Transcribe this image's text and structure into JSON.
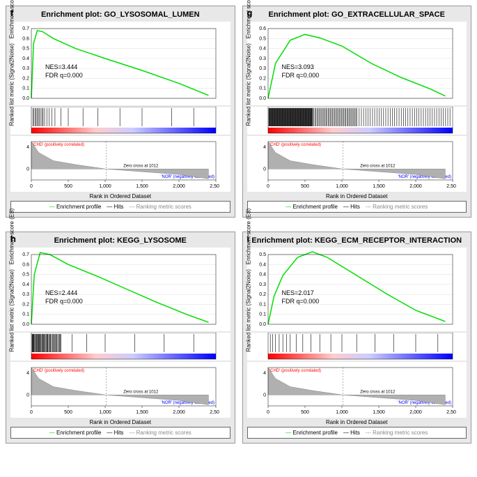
{
  "panels": [
    {
      "letter": "f",
      "title": "Enrichment plot: GO_LYSOSOMAL_LUMEN",
      "nes": "NES=3.444",
      "fdr": "FDR q=0.000",
      "es_ylim": [
        0.0,
        0.7
      ],
      "es_curve": [
        [
          0,
          0
        ],
        [
          30,
          0.55
        ],
        [
          80,
          0.68
        ],
        [
          150,
          0.67
        ],
        [
          300,
          0.6
        ],
        [
          600,
          0.5
        ],
        [
          1000,
          0.4
        ],
        [
          1500,
          0.28
        ],
        [
          2000,
          0.15
        ],
        [
          2400,
          0.03
        ]
      ],
      "bar_positions": [
        20,
        35,
        50,
        65,
        80,
        95,
        110,
        130,
        145,
        160,
        180,
        210,
        240,
        280,
        320,
        400,
        500,
        700,
        900,
        1200,
        1500,
        1900,
        2200
      ],
      "bar_density": "sparse"
    },
    {
      "letter": "g",
      "title": "Enrichment plot: GO_EXTRACELLULAR_SPACE",
      "nes": "NES=3.093",
      "fdr": "FDR q=0.000",
      "es_ylim": [
        0.0,
        0.6
      ],
      "es_curve": [
        [
          0,
          0
        ],
        [
          100,
          0.3
        ],
        [
          300,
          0.5
        ],
        [
          500,
          0.55
        ],
        [
          700,
          0.52
        ],
        [
          1000,
          0.45
        ],
        [
          1400,
          0.3
        ],
        [
          1800,
          0.18
        ],
        [
          2200,
          0.08
        ],
        [
          2400,
          0.02
        ]
      ],
      "bar_positions": [],
      "bar_density": "dense"
    },
    {
      "letter": "h",
      "title": "Enrichment plot: KEGG_LYSOSOME",
      "nes": "NES=2.444",
      "fdr": "FDR q=0.000",
      "es_ylim": [
        0.0,
        0.7
      ],
      "es_curve": [
        [
          0,
          0
        ],
        [
          40,
          0.5
        ],
        [
          120,
          0.72
        ],
        [
          250,
          0.7
        ],
        [
          500,
          0.6
        ],
        [
          900,
          0.48
        ],
        [
          1300,
          0.35
        ],
        [
          1700,
          0.22
        ],
        [
          2100,
          0.1
        ],
        [
          2400,
          0.02
        ]
      ],
      "bar_positions": [
        15,
        25,
        35,
        45,
        55,
        70,
        85,
        100,
        115,
        130,
        150,
        170,
        190,
        220,
        260,
        320,
        400,
        550,
        750,
        1000,
        1400,
        1800,
        2200
      ],
      "bar_density": "medium"
    },
    {
      "letter": "i",
      "title": "Enrichment plot: KEGG_ECM_RECEPTOR_INTERACTION",
      "nes": "NES=2.017",
      "fdr": "FDR q=0.000",
      "es_ylim": [
        0.0,
        0.5
      ],
      "es_curve": [
        [
          0,
          0
        ],
        [
          80,
          0.2
        ],
        [
          200,
          0.35
        ],
        [
          400,
          0.48
        ],
        [
          600,
          0.52
        ],
        [
          800,
          0.48
        ],
        [
          1200,
          0.35
        ],
        [
          1600,
          0.22
        ],
        [
          2000,
          0.1
        ],
        [
          2400,
          0.02
        ]
      ],
      "bar_positions": [
        30,
        60,
        100,
        150,
        200,
        250,
        300,
        380,
        470,
        580,
        700,
        850,
        1000,
        1200,
        1450,
        1700,
        2000,
        2300
      ],
      "bar_density": "sparse"
    }
  ],
  "colors": {
    "es_line": "#00dd00",
    "bar_line": "#000000",
    "gradient_left": "#ff0000",
    "gradient_mid1": "#ffcccc",
    "gradient_mid2": "#ccccff",
    "gradient_right": "#0000ff",
    "metric_fill": "#b0b0b0",
    "bg_panel": "#e8e8e8",
    "bg_chart": "#ffffff",
    "pos_label": "#ff0000",
    "neg_label": "#0000ff"
  },
  "xlim": [
    0,
    2500
  ],
  "xticks": [
    0,
    500,
    1000,
    1500,
    2000,
    2500
  ],
  "metric_ylim": [
    -2,
    5
  ],
  "metric_yticks": [
    0,
    4
  ],
  "zero_cross_label": "Zero cross at 1012",
  "zero_cross_x": 1012,
  "pos_corr_label": "'CHD' (positively correlated)",
  "neg_corr_label": "'NOR' (negatively correlated)",
  "y_label_top": "Enrichment score (ES)",
  "y_label_bottom": "Ranked list metric (Signal2Noise)",
  "x_label": "Rank in Ordered Dataset",
  "legend_items": [
    "Enrichment profile",
    "Hits",
    "Ranking metric scores"
  ],
  "metric_curve": [
    [
      0,
      5
    ],
    [
      100,
      3
    ],
    [
      300,
      1.5
    ],
    [
      600,
      0.8
    ],
    [
      1012,
      0
    ],
    [
      1500,
      -0.5
    ],
    [
      2000,
      -1
    ],
    [
      2400,
      -1.8
    ]
  ]
}
